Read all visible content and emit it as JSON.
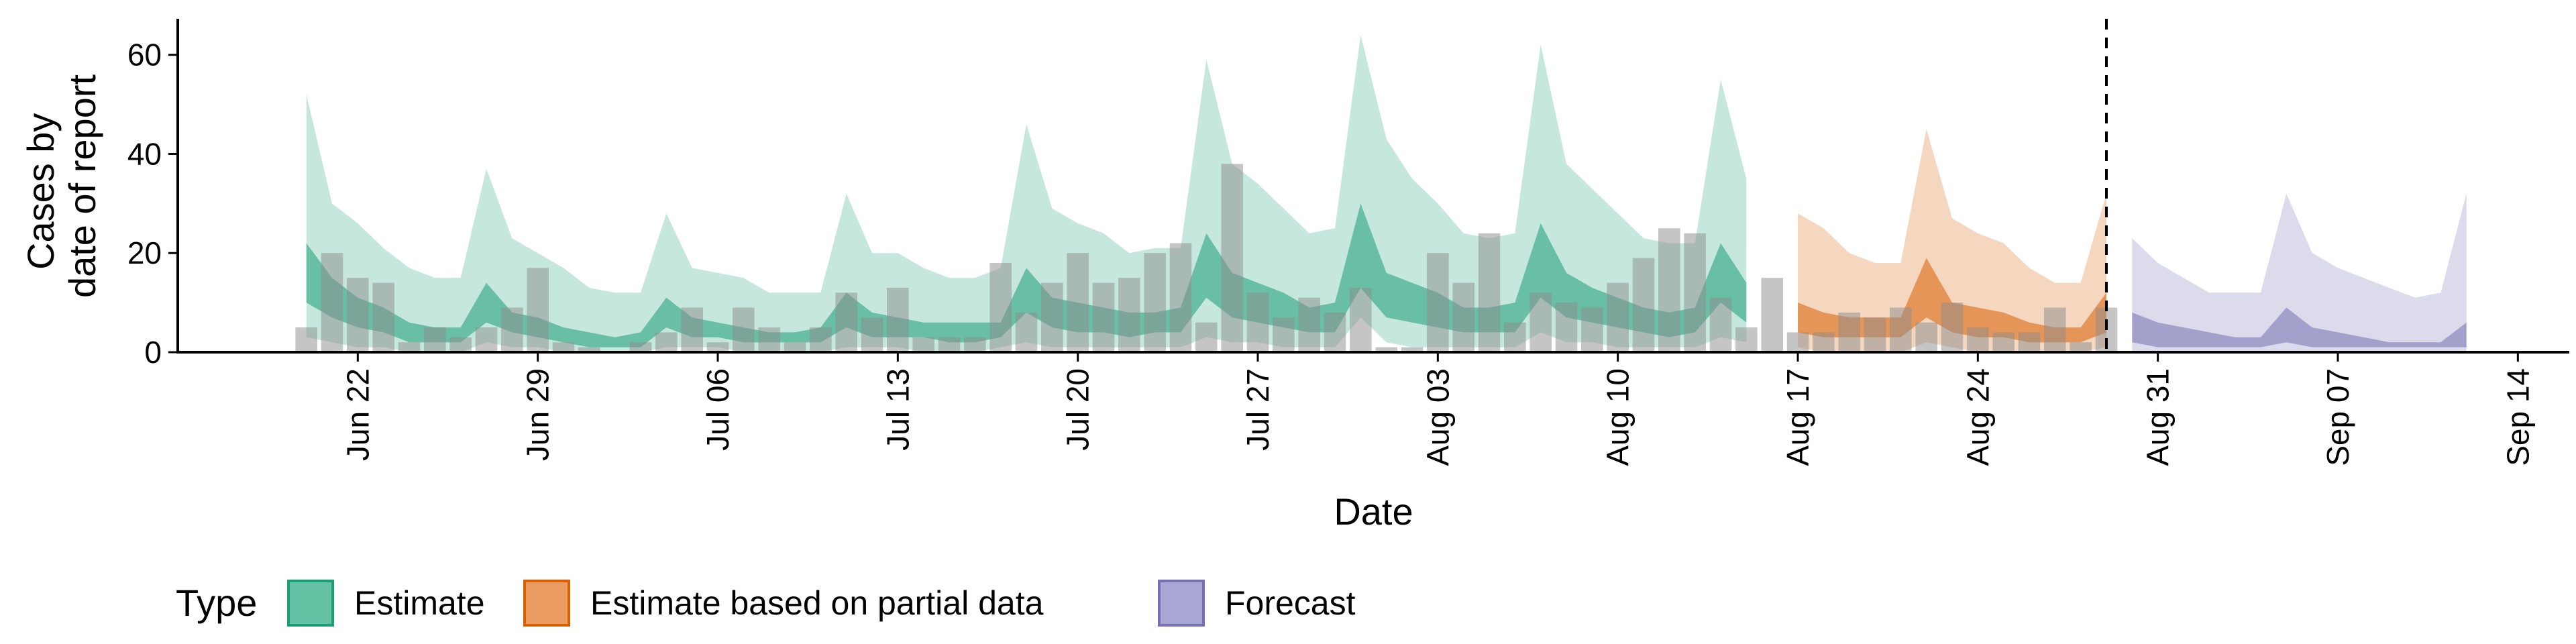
{
  "chart_data": {
    "type": "bar",
    "xlabel": "Date",
    "ylabel_lines": [
      "Cases by",
      "date of report"
    ],
    "ylim": [
      0,
      67
    ],
    "y_ticks": [
      0,
      20,
      40,
      60
    ],
    "x_ticks": [
      {
        "date": "2020-06-22",
        "label": "Jun 22"
      },
      {
        "date": "2020-06-29",
        "label": "Jun 29"
      },
      {
        "date": "2020-07-06",
        "label": "Jul 06"
      },
      {
        "date": "2020-07-13",
        "label": "Jul 13"
      },
      {
        "date": "2020-07-20",
        "label": "Jul 20"
      },
      {
        "date": "2020-07-27",
        "label": "Jul 27"
      },
      {
        "date": "2020-08-03",
        "label": "Aug 03"
      },
      {
        "date": "2020-08-10",
        "label": "Aug 10"
      },
      {
        "date": "2020-08-17",
        "label": "Aug 17"
      },
      {
        "date": "2020-08-24",
        "label": "Aug 24"
      },
      {
        "date": "2020-08-31",
        "label": "Aug 31"
      },
      {
        "date": "2020-09-07",
        "label": "Sep 07"
      },
      {
        "date": "2020-09-14",
        "label": "Sep 14"
      }
    ],
    "xlim": [
      "2020-06-15",
      "2020-09-16"
    ],
    "grid": false,
    "legend_position": "bottom",
    "legend_title": "Type",
    "vline_date": "2020-08-29",
    "reported_cases": {
      "x": [
        "2020-06-20",
        "2020-06-21",
        "2020-06-22",
        "2020-06-23",
        "2020-06-24",
        "2020-06-25",
        "2020-06-26",
        "2020-06-27",
        "2020-06-28",
        "2020-06-29",
        "2020-06-30",
        "2020-07-01",
        "2020-07-02",
        "2020-07-03",
        "2020-07-04",
        "2020-07-05",
        "2020-07-06",
        "2020-07-07",
        "2020-07-08",
        "2020-07-09",
        "2020-07-10",
        "2020-07-11",
        "2020-07-12",
        "2020-07-13",
        "2020-07-14",
        "2020-07-15",
        "2020-07-16",
        "2020-07-17",
        "2020-07-18",
        "2020-07-19",
        "2020-07-20",
        "2020-07-21",
        "2020-07-22",
        "2020-07-23",
        "2020-07-24",
        "2020-07-25",
        "2020-07-26",
        "2020-07-27",
        "2020-07-28",
        "2020-07-29",
        "2020-07-30",
        "2020-07-31",
        "2020-08-01",
        "2020-08-02",
        "2020-08-03",
        "2020-08-04",
        "2020-08-05",
        "2020-08-06",
        "2020-08-07",
        "2020-08-08",
        "2020-08-09",
        "2020-08-10",
        "2020-08-11",
        "2020-08-12",
        "2020-08-13",
        "2020-08-14",
        "2020-08-15",
        "2020-08-16",
        "2020-08-17",
        "2020-08-18",
        "2020-08-19",
        "2020-08-20",
        "2020-08-21",
        "2020-08-22",
        "2020-08-23",
        "2020-08-24",
        "2020-08-25",
        "2020-08-26",
        "2020-08-27",
        "2020-08-28",
        "2020-08-29"
      ],
      "values": [
        5,
        20,
        15,
        14,
        2,
        5,
        3,
        5,
        9,
        17,
        2,
        1,
        0,
        2,
        4,
        9,
        2,
        9,
        5,
        2,
        5,
        12,
        7,
        13,
        3,
        3,
        3,
        18,
        8,
        14,
        20,
        14,
        15,
        20,
        22,
        6,
        38,
        12,
        7,
        11,
        8,
        13,
        1,
        1,
        20,
        14,
        24,
        6,
        12,
        10,
        9,
        14,
        19,
        25,
        24,
        11,
        5,
        15,
        4,
        4,
        8,
        7,
        9,
        6,
        10,
        5,
        4,
        4,
        9,
        2,
        9
      ]
    },
    "series": [
      {
        "name": "Estimate",
        "color": "#1b9e77",
        "x": [
          "2020-06-20",
          "2020-06-21",
          "2020-06-22",
          "2020-06-23",
          "2020-06-24",
          "2020-06-25",
          "2020-06-26",
          "2020-06-27",
          "2020-06-28",
          "2020-06-29",
          "2020-06-30",
          "2020-07-01",
          "2020-07-02",
          "2020-07-03",
          "2020-07-04",
          "2020-07-05",
          "2020-07-06",
          "2020-07-07",
          "2020-07-08",
          "2020-07-09",
          "2020-07-10",
          "2020-07-11",
          "2020-07-12",
          "2020-07-13",
          "2020-07-14",
          "2020-07-15",
          "2020-07-16",
          "2020-07-17",
          "2020-07-18",
          "2020-07-19",
          "2020-07-20",
          "2020-07-21",
          "2020-07-22",
          "2020-07-23",
          "2020-07-24",
          "2020-07-25",
          "2020-07-26",
          "2020-07-27",
          "2020-07-28",
          "2020-07-29",
          "2020-07-30",
          "2020-07-31",
          "2020-08-01",
          "2020-08-02",
          "2020-08-03",
          "2020-08-04",
          "2020-08-05",
          "2020-08-06",
          "2020-08-07",
          "2020-08-08",
          "2020-08-09",
          "2020-08-10",
          "2020-08-11",
          "2020-08-12",
          "2020-08-13",
          "2020-08-14",
          "2020-08-15",
          "2020-08-16"
        ],
        "upper90": [
          52,
          30,
          26,
          21,
          17,
          15,
          15,
          37,
          23,
          20,
          17,
          13,
          12,
          12,
          28,
          17,
          16,
          15,
          12,
          12,
          12,
          32,
          20,
          20,
          17,
          15,
          15,
          17,
          46,
          29,
          26,
          24,
          20,
          21,
          21,
          59,
          38,
          34,
          29,
          24,
          25,
          64,
          43,
          35,
          30,
          24,
          23,
          24,
          62,
          38,
          33,
          28,
          23,
          22,
          22,
          55,
          35,
          null
        ],
        "upper50": [
          22,
          15,
          11,
          9,
          6,
          5,
          5,
          14,
          8,
          7,
          5,
          4,
          3,
          4,
          11,
          7,
          6,
          5,
          4,
          4,
          5,
          12,
          8,
          7,
          6,
          6,
          6,
          6,
          17,
          11,
          10,
          9,
          8,
          8,
          9,
          24,
          16,
          14,
          12,
          9,
          10,
          30,
          16,
          14,
          12,
          9,
          9,
          10,
          26,
          16,
          13,
          11,
          9,
          8,
          9,
          22,
          14,
          null
        ],
        "lower50": [
          10,
          7,
          5,
          4,
          2,
          2,
          2,
          6,
          4,
          3,
          2,
          1,
          1,
          1,
          5,
          3,
          3,
          2,
          2,
          2,
          2,
          5,
          3,
          3,
          3,
          2,
          2,
          3,
          8,
          5,
          4,
          4,
          3,
          4,
          4,
          11,
          7,
          6,
          5,
          4,
          4,
          13,
          7,
          6,
          5,
          4,
          4,
          4,
          11,
          7,
          6,
          5,
          4,
          3,
          4,
          10,
          6,
          null
        ],
        "lower90": [
          3,
          2,
          1,
          1,
          0,
          0,
          0,
          2,
          1,
          1,
          0,
          0,
          0,
          0,
          1,
          1,
          1,
          0,
          0,
          0,
          0,
          1,
          1,
          1,
          0,
          0,
          0,
          1,
          2,
          1,
          1,
          1,
          1,
          1,
          1,
          3,
          2,
          2,
          1,
          1,
          1,
          7,
          2,
          1,
          1,
          1,
          1,
          1,
          4,
          2,
          2,
          1,
          1,
          1,
          1,
          3,
          2,
          null
        ]
      },
      {
        "name": "Estimate based on partial data",
        "color": "#d95f02",
        "x": [
          "2020-08-17",
          "2020-08-18",
          "2020-08-19",
          "2020-08-20",
          "2020-08-21",
          "2020-08-22",
          "2020-08-23",
          "2020-08-24",
          "2020-08-25",
          "2020-08-26",
          "2020-08-27",
          "2020-08-28",
          "2020-08-29"
        ],
        "upper90": [
          28,
          25,
          20,
          18,
          18,
          45,
          27,
          24,
          22,
          17,
          14,
          14,
          32
        ],
        "upper50": [
          10,
          8,
          7,
          7,
          7,
          19,
          10,
          9,
          8,
          6,
          5,
          5,
          12
        ],
        "lower50": [
          4,
          3,
          3,
          3,
          3,
          7,
          4,
          3,
          3,
          2,
          2,
          2,
          4
        ],
        "lower90": [
          1,
          0,
          0,
          0,
          0,
          2,
          1,
          0,
          0,
          0,
          0,
          0,
          1
        ]
      },
      {
        "name": "Forecast",
        "color": "#7570b3",
        "x": [
          "2020-08-30",
          "2020-08-31",
          "2020-09-01",
          "2020-09-02",
          "2020-09-03",
          "2020-09-04",
          "2020-09-05",
          "2020-09-06",
          "2020-09-07",
          "2020-09-08",
          "2020-09-09",
          "2020-09-10",
          "2020-09-11",
          "2020-09-12"
        ],
        "upper90": [
          23,
          18,
          15,
          12,
          12,
          12,
          32,
          20,
          17,
          15,
          13,
          11,
          12,
          32
        ],
        "upper50": [
          8,
          6,
          5,
          4,
          3,
          3,
          9,
          5,
          4,
          3,
          2,
          2,
          2,
          6
        ],
        "lower50": [
          2,
          1,
          1,
          1,
          1,
          1,
          2,
          1,
          1,
          1,
          1,
          1,
          1,
          1
        ],
        "lower90": [
          0,
          0,
          0,
          0,
          0,
          0,
          0,
          0,
          0,
          0,
          0,
          0,
          0,
          0
        ]
      }
    ],
    "legend": [
      {
        "label": "Estimate",
        "fill": "#66c2a5",
        "stroke": "#1b9e77"
      },
      {
        "label": "Estimate based on partial data",
        "fill": "#eb9c62",
        "stroke": "#d95f02"
      },
      {
        "label": "Forecast",
        "fill": "#a9a6d3",
        "stroke": "#7570b3"
      }
    ]
  }
}
